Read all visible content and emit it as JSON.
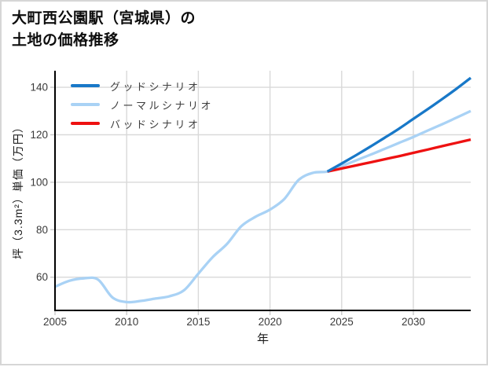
{
  "chart_data": {
    "type": "line",
    "title": "大町西公園駅（宮城県）の土地の価格推移",
    "title_lines": [
      "大町西公園駅（宮城県）の",
      "土地の価格推移"
    ],
    "xlabel": "年",
    "ylabel": "坪（3.3m²）単価（万円）",
    "x_ticks": [
      2005,
      2010,
      2015,
      2020,
      2025,
      2030
    ],
    "y_ticks": [
      60,
      80,
      100,
      120,
      140
    ],
    "xlim": [
      2005,
      2034
    ],
    "ylim": [
      46,
      147
    ],
    "grid": true,
    "legend_position": "upper-left",
    "grid_color": "#d9d9d9",
    "axis_color": "#000000",
    "series": [
      {
        "name": "グッドシナリオ",
        "color": "#1878c8",
        "x": [
          2024,
          2025,
          2026,
          2027,
          2028,
          2029,
          2030,
          2031,
          2032,
          2033,
          2034
        ],
        "values": [
          104.5,
          107.9,
          111.4,
          115.0,
          118.8,
          122.6,
          126.7,
          130.8,
          135.0,
          139.4,
          144.0
        ]
      },
      {
        "name": "ノーマルシナリオ",
        "color": "#a9d2f5",
        "x": [
          2005,
          2006,
          2007,
          2008,
          2009,
          2010,
          2011,
          2012,
          2013,
          2014,
          2015,
          2016,
          2017,
          2018,
          2019,
          2020,
          2021,
          2022,
          2023,
          2024,
          2025,
          2026,
          2027,
          2028,
          2029,
          2030,
          2031,
          2032,
          2033,
          2034
        ],
        "values": [
          56,
          58.5,
          59.5,
          59,
          51.5,
          49.5,
          50,
          51,
          52,
          54.5,
          61.5,
          68.5,
          74,
          81.5,
          85.5,
          88.5,
          93,
          101,
          104,
          104.5,
          106.8,
          109.2,
          111.6,
          114.1,
          116.6,
          119.1,
          121.8,
          124.4,
          127.2,
          130.0
        ]
      },
      {
        "name": "バッドシナリオ",
        "color": "#ee1111",
        "x": [
          2024,
          2025,
          2026,
          2027,
          2028,
          2029,
          2030,
          2031,
          2032,
          2033,
          2034
        ],
        "values": [
          104.5,
          105.8,
          107.1,
          108.4,
          109.7,
          111.0,
          112.4,
          113.8,
          115.2,
          116.6,
          118.0
        ]
      }
    ]
  }
}
